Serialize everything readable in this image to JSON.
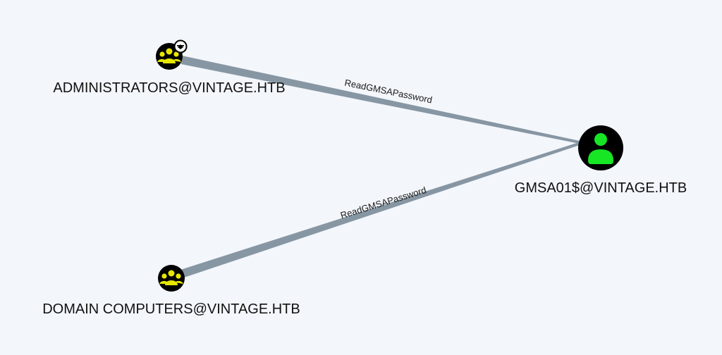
{
  "graph": {
    "nodes": [
      {
        "id": "admins",
        "label": "ADMINISTRATORS@VINTAGE.HTB",
        "type": "group",
        "icon": "group-icon",
        "badge": "highvalue-icon",
        "color": "#e6e600"
      },
      {
        "id": "domcomp",
        "label": "DOMAIN COMPUTERS@VINTAGE.HTB",
        "type": "group",
        "icon": "group-icon",
        "color": "#e6e600"
      },
      {
        "id": "gmsa",
        "label": "GMSA01$@VINTAGE.HTB",
        "type": "user",
        "icon": "user-icon",
        "color": "#17e625"
      }
    ],
    "edges": [
      {
        "from": "admins",
        "to": "gmsa",
        "label": "ReadGMSAPassword"
      },
      {
        "from": "domcomp",
        "to": "gmsa",
        "label": "ReadGMSAPassword"
      }
    ],
    "colors": {
      "background": "#f3f6fb",
      "edge": "#8796a3",
      "node_fill": "#000000"
    }
  }
}
